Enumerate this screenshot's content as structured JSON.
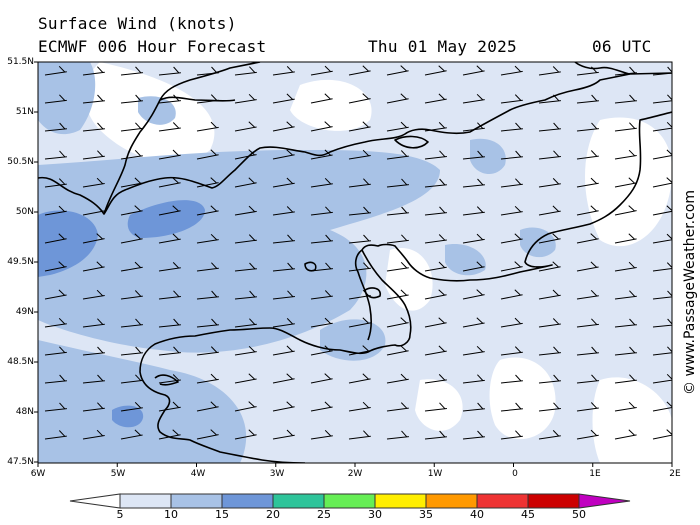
{
  "header": {
    "title": "Surface Wind (knots)",
    "model": "ECMWF 006 Hour Forecast",
    "date": "Thu 01 May 2025",
    "time": "06 UTC"
  },
  "credit": "© www.PassageWeather.com",
  "map": {
    "lat_labels": [
      "51.5N",
      "51N",
      "50.5N",
      "50N",
      "49.5N",
      "49N",
      "48.5N",
      "48N",
      "47.5N"
    ],
    "lon_labels": [
      "6W",
      "5W",
      "4W",
      "3W",
      "2W",
      "1W",
      "0",
      "1E",
      "2E"
    ],
    "colors": {
      "land_line": "#000000",
      "ocean_bg": "#ffffff"
    },
    "wind_scale": {
      "levels": [
        "5",
        "10",
        "15",
        "20",
        "25",
        "30",
        "35",
        "40",
        "45",
        "50"
      ],
      "colors": [
        "#ffffff",
        "#dde6f5",
        "#a8c2e6",
        "#6e96d8",
        "#2ec49a",
        "#66ee55",
        "#ffee00",
        "#ff9900",
        "#ee3333",
        "#cc0000",
        "#c000c0"
      ]
    }
  }
}
